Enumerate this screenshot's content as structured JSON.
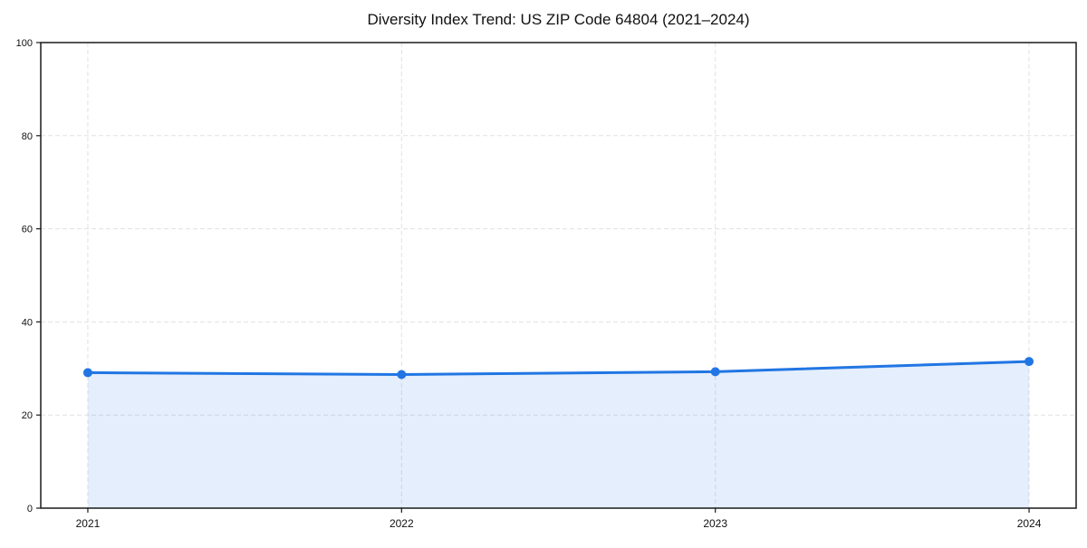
{
  "chart_data": {
    "type": "area",
    "title": "Diversity Index Trend: US ZIP Code 64804 (2021–2024)",
    "x": [
      2021,
      2022,
      2023,
      2024
    ],
    "x_tick_labels": [
      "2021",
      "2022",
      "2023",
      "2024"
    ],
    "series": [
      {
        "name": "Diversity Index",
        "values": [
          29.1,
          28.7,
          29.3,
          31.5
        ]
      }
    ],
    "y_ticks": [
      0,
      20,
      40,
      60,
      80,
      100
    ],
    "y_tick_labels": [
      "0",
      "20",
      "40",
      "60",
      "80",
      "100"
    ],
    "xlim": [
      2020.85,
      2024.15
    ],
    "ylim": [
      0,
      100
    ],
    "xlabel": "",
    "ylabel": "",
    "grid": true,
    "grid_style": "dashed",
    "legend": "none",
    "colors": {
      "line": "#2176e3",
      "marker": "#2176e3",
      "fill": "rgba(33,118,227,0.12)",
      "grid": "#e1e1e1",
      "axis": "#1a1a1a",
      "text": "#111111",
      "background": "#ffffff"
    }
  }
}
